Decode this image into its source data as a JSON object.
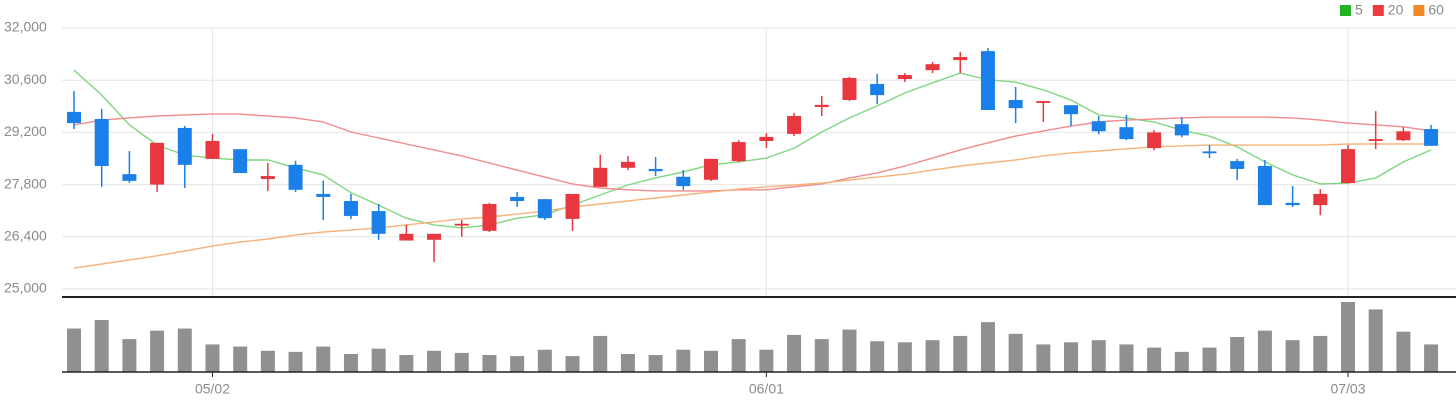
{
  "chart_data": {
    "type": "candlestick",
    "categories": [
      null,
      null,
      null,
      null,
      null,
      "05/02",
      null,
      null,
      null,
      null,
      null,
      null,
      null,
      null,
      null,
      null,
      null,
      null,
      null,
      null,
      null,
      null,
      null,
      null,
      null,
      "06/01",
      null,
      null,
      null,
      null,
      null,
      null,
      null,
      null,
      null,
      null,
      null,
      null,
      null,
      null,
      null,
      null,
      null,
      null,
      null,
      null,
      "07/03",
      null,
      null,
      null
    ],
    "open": [
      29750,
      29560,
      28080,
      27800,
      29320,
      28490,
      28750,
      27950,
      28330,
      27550,
      27360,
      27090,
      26300,
      26320,
      26700,
      26560,
      27470,
      27410,
      26880,
      27740,
      28250,
      28220,
      28010,
      27930,
      28430,
      28970,
      29160,
      29880,
      30070,
      30500,
      30630,
      30870,
      31140,
      31380,
      30070,
      29990,
      29930,
      29500,
      29340,
      28780,
      29420,
      28690,
      28430,
      28300,
      27310,
      27250,
      27840,
      28970,
      28990,
      29290
    ],
    "high": [
      30310,
      29830,
      28700,
      28920,
      29370,
      29160,
      28750,
      28380,
      28440,
      27910,
      27550,
      27280,
      26720,
      26480,
      26850,
      27310,
      27600,
      27410,
      27550,
      28600,
      28570,
      28540,
      28190,
      28490,
      28990,
      29180,
      29720,
      30180,
      30690,
      30770,
      30790,
      31090,
      31360,
      31460,
      30420,
      30040,
      29930,
      29640,
      29670,
      29260,
      29610,
      28860,
      28490,
      28460,
      27760,
      27680,
      28860,
      29770,
      29340,
      29400
    ],
    "low": [
      29290,
      27740,
      27850,
      27600,
      27710,
      28490,
      28110,
      27630,
      27600,
      26850,
      26880,
      26320,
      26300,
      25720,
      26400,
      26530,
      27200,
      26850,
      26560,
      27740,
      28190,
      28030,
      27660,
      27900,
      28400,
      28780,
      29100,
      29640,
      30040,
      29960,
      30550,
      30790,
      30790,
      29800,
      29450,
      29480,
      29370,
      29150,
      28990,
      28720,
      29070,
      28510,
      27920,
      27250,
      27200,
      26980,
      27840,
      28750,
      28970,
      28840
    ],
    "close": [
      29450,
      28300,
      27900,
      28920,
      28330,
      28970,
      28110,
      28030,
      27660,
      27470,
      26960,
      26480,
      26480,
      26480,
      26750,
      27280,
      27360,
      26900,
      27550,
      28250,
      28410,
      28160,
      27760,
      28490,
      28940,
      29080,
      29640,
      29940,
      30660,
      30200,
      30740,
      31030,
      31220,
      29800,
      29850,
      30040,
      29690,
      29230,
      29020,
      29200,
      29120,
      28640,
      28220,
      27250,
      27250,
      27550,
      28750,
      29020,
      29230,
      28840
    ],
    "volume": [
      41,
      49,
      31,
      39,
      41,
      26,
      24,
      20,
      19,
      24,
      17,
      22,
      16,
      20,
      18,
      16,
      15,
      21,
      15,
      34,
      17,
      16,
      21,
      20,
      31,
      21,
      35,
      31,
      40,
      29,
      28,
      30,
      34,
      47,
      36,
      26,
      28,
      30,
      26,
      23,
      19,
      23,
      33,
      39,
      30,
      34,
      66,
      59,
      38,
      26
    ],
    "up_color": "#e8373e",
    "down_color": "#1a7fe8",
    "volume_color": "#909090",
    "series": [
      {
        "name": "5",
        "color": "#22b422",
        "values": [
          30870,
          30200,
          29400,
          28860,
          28590,
          28510,
          28460,
          28460,
          28250,
          28060,
          27580,
          27250,
          26900,
          26720,
          26640,
          26720,
          26900,
          26990,
          27250,
          27520,
          27790,
          27980,
          28140,
          28330,
          28410,
          28510,
          28780,
          29210,
          29590,
          29910,
          30260,
          30530,
          30790,
          30610,
          30550,
          30340,
          30070,
          29670,
          29590,
          29480,
          29260,
          29100,
          28810,
          28410,
          28060,
          27820,
          27840,
          27980,
          28410,
          28730
        ]
      },
      {
        "name": "20",
        "color": "#ef3b3b",
        "values": [
          29400,
          29530,
          29590,
          29640,
          29670,
          29690,
          29690,
          29640,
          29590,
          29480,
          29210,
          29050,
          28890,
          28730,
          28570,
          28380,
          28190,
          28000,
          27820,
          27710,
          27660,
          27630,
          27630,
          27630,
          27660,
          27660,
          27740,
          27820,
          27980,
          28110,
          28300,
          28510,
          28730,
          28920,
          29100,
          29240,
          29370,
          29480,
          29530,
          29560,
          29590,
          29610,
          29610,
          29610,
          29590,
          29530,
          29450,
          29400,
          29350,
          29240
        ]
      },
      {
        "name": "60",
        "color": "#f08a24",
        "values": [
          25560,
          25670,
          25780,
          25890,
          26020,
          26150,
          26260,
          26340,
          26450,
          26530,
          26580,
          26640,
          26720,
          26800,
          26880,
          26930,
          27010,
          27090,
          27200,
          27280,
          27360,
          27440,
          27520,
          27600,
          27680,
          27740,
          27790,
          27840,
          27920,
          28000,
          28080,
          28190,
          28300,
          28380,
          28460,
          28570,
          28650,
          28700,
          28760,
          28810,
          28840,
          28860,
          28860,
          28860,
          28860,
          28860,
          28890,
          28890,
          28890,
          28890
        ]
      }
    ],
    "ma_line_colors": [
      "#7fd67f",
      "#f28b8b",
      "#f5b37a"
    ],
    "ylim": [
      25000,
      32000
    ],
    "yticks": [
      {
        "value": 25000,
        "label": "25,000"
      },
      {
        "value": 26400,
        "label": "26,400"
      },
      {
        "value": 27800,
        "label": "27,800"
      },
      {
        "value": 29200,
        "label": "29,200"
      },
      {
        "value": 30600,
        "label": "30,600"
      },
      {
        "value": 32000,
        "label": "32,000"
      }
    ],
    "grid": true,
    "legend": "top-right"
  }
}
